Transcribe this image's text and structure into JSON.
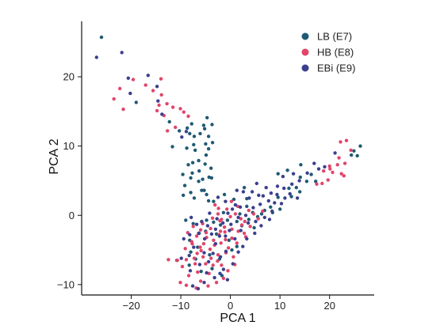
{
  "chart_data": {
    "type": "scatter",
    "title": "",
    "xlabel": "PCA 1",
    "ylabel": "PCA 2",
    "xlim": [
      -30,
      29
    ],
    "ylim": [
      -11.5,
      28
    ],
    "xticks": [
      -20,
      -10,
      0,
      10,
      20
    ],
    "yticks": [
      -10,
      0,
      10,
      20
    ],
    "grid": false,
    "legend_position": "top-right",
    "series": [
      {
        "name": "LB (E7)",
        "color": "#1f5a74",
        "points": [
          [
            -26,
            25.7
          ],
          [
            -19,
            16.3
          ],
          [
            -12.3,
            13.5
          ],
          [
            -10.3,
            12.2
          ],
          [
            -8.7,
            12.6
          ],
          [
            -8.2,
            11.8
          ],
          [
            -7.3,
            11.4
          ],
          [
            -7.4,
            10.2
          ],
          [
            -5.4,
            13.0
          ],
          [
            -5.2,
            12.5
          ],
          [
            -3.7,
            13.1
          ],
          [
            -4.4,
            11.4
          ],
          [
            -7.6,
            7.6
          ],
          [
            -6.4,
            7.9
          ],
          [
            -4.9,
            8.7
          ],
          [
            -5.1,
            7.4
          ],
          [
            -4.3,
            5.5
          ],
          [
            -5.6,
            5.2
          ],
          [
            -8.0,
            5.4
          ],
          [
            -9.6,
            5.9
          ],
          [
            -11.7,
            9.9
          ],
          [
            -8.5,
            7.3
          ],
          [
            -7.7,
            6.1
          ],
          [
            -9.2,
            4.3
          ],
          [
            -5.3,
            3.6
          ],
          [
            -4.8,
            3.0
          ],
          [
            -3.8,
            5.4
          ],
          [
            -4.4,
            9.6
          ],
          [
            -8.8,
            9.7
          ],
          [
            -7.1,
            9.4
          ],
          [
            -5.0,
            10.3
          ],
          [
            -3.6,
            10.5
          ],
          [
            -3.9,
            6.8
          ],
          [
            -8.0,
            3.3
          ],
          [
            -9.5,
            2.9
          ],
          [
            -4.4,
            2.1
          ],
          [
            -3.4,
            2.0
          ],
          [
            -5.8,
            3.6
          ],
          [
            -6.3,
            6.4
          ],
          [
            -6.1,
            11.8
          ],
          [
            -4.7,
            14.1
          ],
          [
            -7.8,
            13.2
          ],
          [
            -6.4,
            4.9
          ],
          [
            -7.3,
            2.5
          ],
          [
            -9.0,
            -0.7
          ],
          [
            -7.5,
            -1.2
          ],
          [
            -6.3,
            -2.6
          ],
          [
            -5.0,
            -2.3
          ],
          [
            -3.4,
            -1.0
          ],
          [
            -2.0,
            -1.4
          ],
          [
            -0.6,
            -0.7
          ],
          [
            1.3,
            -0.9
          ],
          [
            2.3,
            -1.5
          ],
          [
            3.7,
            -0.6
          ],
          [
            4.5,
            0.4
          ],
          [
            5.5,
            -0.2
          ],
          [
            6.3,
            0.2
          ],
          [
            8.1,
            1.2
          ],
          [
            8.5,
            0.4
          ],
          [
            9.6,
            2.6
          ],
          [
            10.0,
            0.9
          ],
          [
            11.8,
            3.9
          ],
          [
            12.3,
            2.7
          ],
          [
            13.3,
            4.0
          ],
          [
            14.0,
            3.4
          ],
          [
            14.1,
            5.5
          ],
          [
            15.4,
            4.9
          ],
          [
            16.3,
            5.9
          ],
          [
            17.2,
            4.9
          ],
          [
            11.5,
            6.5
          ],
          [
            14.2,
            7.3
          ],
          [
            9.6,
            6.0
          ],
          [
            -1.2,
            3.0
          ],
          [
            0.7,
            2.3
          ],
          [
            2.8,
            4.0
          ],
          [
            3.3,
            2.4
          ],
          [
            -8.2,
            -3.6
          ],
          [
            -6.6,
            -4.6
          ],
          [
            -4.2,
            -5.7
          ],
          [
            -2.2,
            -6.3
          ],
          [
            -0.3,
            -3.6
          ],
          [
            1.3,
            -4.5
          ],
          [
            -7.0,
            -6.3
          ],
          [
            -5.9,
            -8.1
          ],
          [
            -8.3,
            -7.2
          ],
          [
            -3.7,
            -7.7
          ],
          [
            -1.7,
            -8.7
          ],
          [
            0.3,
            -5.0
          ],
          [
            -2.8,
            -2.7
          ],
          [
            24.4,
            8.7
          ],
          [
            25.6,
            8.6
          ],
          [
            26.2,
            10.0
          ],
          [
            24.9,
            9.3
          ],
          [
            -10.8,
            -6.5
          ],
          [
            -8.0,
            -5.3
          ],
          [
            4.8,
            -1.8
          ],
          [
            6.9,
            0.7
          ],
          [
            3.3,
            1.3
          ],
          [
            1.9,
            0.2
          ],
          [
            -1.4,
            0.4
          ],
          [
            -4.8,
            -0.7
          ]
        ]
      },
      {
        "name": "HB (E8)",
        "color": "#e1456a",
        "points": [
          [
            -23.5,
            16.8
          ],
          [
            -21.6,
            15.3
          ],
          [
            -22.3,
            18.3
          ],
          [
            -19.6,
            19.6
          ],
          [
            -17.1,
            18.8
          ],
          [
            -15.6,
            18.0
          ],
          [
            -14.0,
            19.7
          ],
          [
            -13.9,
            17.4
          ],
          [
            -13.4,
            14.4
          ],
          [
            -14.4,
            15.9
          ],
          [
            -12.8,
            16.1
          ],
          [
            -11.6,
            15.6
          ],
          [
            -10.1,
            15.4
          ],
          [
            -9.4,
            14.9
          ],
          [
            -8.5,
            14.3
          ],
          [
            -12.7,
            12.2
          ],
          [
            -11.1,
            12.7
          ],
          [
            -14.8,
            15.1
          ],
          [
            -7.5,
            -1.6
          ],
          [
            -6.0,
            -2.1
          ],
          [
            -4.8,
            -3.2
          ],
          [
            -3.4,
            -3.6
          ],
          [
            -2.3,
            -2.8
          ],
          [
            -1.0,
            -3.5
          ],
          [
            0.3,
            -2.0
          ],
          [
            1.6,
            -2.3
          ],
          [
            2.9,
            -0.9
          ],
          [
            3.7,
            0.7
          ],
          [
            -0.7,
            0.9
          ],
          [
            -2.5,
            0.2
          ],
          [
            -6.1,
            -4.6
          ],
          [
            -4.1,
            -4.9
          ],
          [
            -2.5,
            -5.7
          ],
          [
            -0.9,
            -5.4
          ],
          [
            0.6,
            -6.0
          ],
          [
            -3.5,
            -7.2
          ],
          [
            -5.5,
            -6.0
          ],
          [
            -6.6,
            -8.2
          ],
          [
            -8.4,
            -8.7
          ],
          [
            -9.7,
            -7.4
          ],
          [
            -4.3,
            -8.4
          ],
          [
            -1.8,
            -7.2
          ],
          [
            -2.8,
            -9.7
          ],
          [
            -0.5,
            -8.0
          ],
          [
            -6.0,
            -9.5
          ],
          [
            -7.7,
            -4.1
          ],
          [
            -10.7,
            -6.5
          ],
          [
            -12.5,
            -6.4
          ],
          [
            -10.1,
            -9.7
          ],
          [
            -8.9,
            -10.1
          ],
          [
            -6.9,
            -10.5
          ],
          [
            1.3,
            -4.0
          ],
          [
            2.8,
            -2.6
          ],
          [
            4.0,
            -1.6
          ],
          [
            5.6,
            -0.5
          ],
          [
            6.5,
            0.6
          ],
          [
            -1.2,
            -1.7
          ],
          [
            0.0,
            -0.2
          ],
          [
            1.5,
            1.3
          ],
          [
            -3.1,
            1.5
          ],
          [
            20.0,
            7.1
          ],
          [
            20.6,
            6.2
          ],
          [
            21.6,
            7.3
          ],
          [
            22.4,
            6.0
          ],
          [
            21.9,
            8.3
          ],
          [
            18.8,
            6.4
          ],
          [
            17.4,
            4.5
          ],
          [
            19.7,
            5.1
          ],
          [
            22.9,
            5.7
          ],
          [
            23.1,
            7.5
          ],
          [
            24.3,
            9.4
          ],
          [
            23.4,
            10.8
          ],
          [
            22.2,
            10.6
          ],
          [
            20.1,
            6.7
          ],
          [
            18.5,
            4.6
          ],
          [
            -5.6,
            -1.2
          ],
          [
            -8.6,
            -2.5
          ],
          [
            -7.1,
            -7.0
          ],
          [
            -2.1,
            -0.8
          ],
          [
            2.3,
            -1.4
          ],
          [
            -4.0,
            -1.9
          ],
          [
            -6.7,
            -5.5
          ],
          [
            -3.2,
            -4.3
          ],
          [
            -1.9,
            -4.0
          ],
          [
            -0.4,
            -4.7
          ],
          [
            -5.0,
            -7.0
          ],
          [
            -7.3,
            -6.2
          ],
          [
            -9.1,
            -4.8
          ],
          [
            0.9,
            -7.1
          ],
          [
            -1.4,
            -9.1
          ],
          [
            -4.5,
            -10.2
          ],
          [
            3.1,
            -3.1
          ],
          [
            4.7,
            0.2
          ],
          [
            -8.9,
            -6.4
          ],
          [
            -2.6,
            -6.6
          ],
          [
            -5.4,
            -4.1
          ],
          [
            -3.9,
            -6.2
          ],
          [
            -1.1,
            -2.4
          ],
          [
            0.3,
            -3.3
          ],
          [
            2.1,
            -0.5
          ],
          [
            -6.8,
            -3.0
          ],
          [
            -4.9,
            -2.5
          ],
          [
            -3.6,
            -0.4
          ],
          [
            -1.8,
            -0.6
          ],
          [
            1.0,
            0.2
          ],
          [
            -2.4,
            1.0
          ],
          [
            0.2,
            2.0
          ],
          [
            -7.8,
            -3.8
          ],
          [
            -5.9,
            -5.1
          ],
          [
            -2.0,
            -2.3
          ]
        ]
      },
      {
        "name": "EBi (E9)",
        "color": "#3c3f8e",
        "points": [
          [
            -27.0,
            22.8
          ],
          [
            -21.9,
            23.5
          ],
          [
            -20.6,
            19.8
          ],
          [
            -16.6,
            20.2
          ],
          [
            -14.8,
            18.6
          ],
          [
            -13.8,
            14.6
          ],
          [
            -9.8,
            11.3
          ],
          [
            -8.9,
            12.1
          ],
          [
            -14.6,
            16.5
          ],
          [
            -20.2,
            17.6
          ],
          [
            -5.8,
            -0.9
          ],
          [
            -4.6,
            -1.5
          ],
          [
            -3.0,
            -2.0
          ],
          [
            -1.5,
            -1.1
          ],
          [
            0.1,
            -1.3
          ],
          [
            1.6,
            -0.3
          ],
          [
            3.1,
            0.0
          ],
          [
            4.6,
            1.1
          ],
          [
            6.0,
            1.6
          ],
          [
            7.7,
            2.1
          ],
          [
            9.4,
            3.0
          ],
          [
            10.8,
            3.9
          ],
          [
            12.4,
            4.5
          ],
          [
            13.9,
            5.0
          ],
          [
            15.5,
            6.1
          ],
          [
            16.9,
            7.5
          ],
          [
            17.8,
            6.7
          ],
          [
            10.6,
            5.6
          ],
          [
            12.7,
            6.0
          ],
          [
            7.2,
            4.0
          ],
          [
            5.7,
            2.9
          ],
          [
            3.8,
            2.5
          ],
          [
            2.6,
            3.4
          ],
          [
            1.0,
            1.5
          ],
          [
            -0.5,
            0.3
          ],
          [
            -2.7,
            -0.5
          ],
          [
            -4.2,
            0.3
          ],
          [
            -6.8,
            -1.3
          ],
          [
            -8.2,
            -2.8
          ],
          [
            -7.4,
            -4.6
          ],
          [
            -5.3,
            -5.4
          ],
          [
            -3.0,
            -4.1
          ],
          [
            -1.0,
            -3.0
          ],
          [
            0.9,
            -3.4
          ],
          [
            2.1,
            -2.2
          ],
          [
            3.6,
            -1.1
          ],
          [
            5.1,
            -0.9
          ],
          [
            6.9,
            -0.3
          ],
          [
            8.4,
            0.6
          ],
          [
            -2.0,
            -6.0
          ],
          [
            -0.9,
            -5.2
          ],
          [
            -4.4,
            -6.7
          ],
          [
            -6.2,
            -7.1
          ],
          [
            -3.2,
            -9.0
          ],
          [
            -5.3,
            -9.7
          ],
          [
            -1.4,
            -7.8
          ],
          [
            1.6,
            -5.3
          ],
          [
            2.5,
            -4.5
          ],
          [
            -8.1,
            -8.0
          ],
          [
            -9.9,
            -6.2
          ],
          [
            -7.6,
            -10.2
          ],
          [
            -6.5,
            -10.6
          ],
          [
            -4.8,
            -8.3
          ],
          [
            9.5,
            4.2
          ],
          [
            11.0,
            2.5
          ],
          [
            12.0,
            3.1
          ],
          [
            13.5,
            2.5
          ],
          [
            8.9,
            1.8
          ],
          [
            3.3,
            -3.4
          ],
          [
            4.9,
            -2.6
          ],
          [
            6.2,
            -1.5
          ],
          [
            -0.2,
            -2.2
          ],
          [
            -2.2,
            -3.0
          ],
          [
            -6.4,
            -2.6
          ],
          [
            -3.8,
            -2.7
          ],
          [
            0.4,
            0.9
          ],
          [
            2.0,
            1.2
          ],
          [
            -1.0,
            2.0
          ],
          [
            4.4,
            3.4
          ],
          [
            6.6,
            2.8
          ],
          [
            8.2,
            3.2
          ],
          [
            10.3,
            1.7
          ],
          [
            7.9,
            -0.6
          ],
          [
            19.0,
            7.0
          ],
          [
            21.1,
            9.0
          ],
          [
            -7.9,
            -0.3
          ],
          [
            -2.5,
            2.6
          ],
          [
            1.3,
            3.6
          ],
          [
            5.3,
            4.6
          ],
          [
            -5.2,
            -3.4
          ],
          [
            -3.5,
            -5.5
          ],
          [
            -8.3,
            -5.8
          ],
          [
            -9.4,
            -3.4
          ],
          [
            -0.6,
            -9.3
          ],
          [
            0.5,
            -7.0
          ],
          [
            -2.1,
            -8.4
          ]
        ]
      }
    ]
  }
}
